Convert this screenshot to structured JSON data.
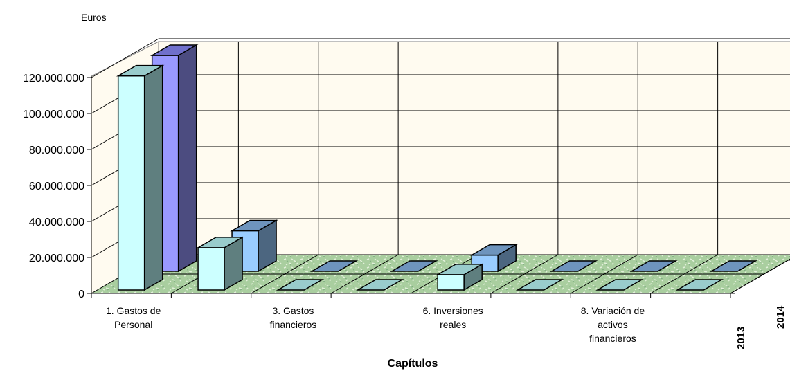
{
  "chart_data": {
    "type": "bar",
    "title": "",
    "ylabel": "Euros",
    "xlabel": "Capítulos",
    "ylim": [
      0,
      120000000
    ],
    "yticks": [
      "0",
      "20.000.000",
      "40.000.000",
      "60.000.000",
      "80.000.000",
      "100.000.000",
      "120.000.000"
    ],
    "categories": [
      "1. Gastos de Personal",
      "",
      "3. Gastos financieros",
      "",
      "6. Inversiones reales",
      "",
      "8. Variación de activos financieros",
      ""
    ],
    "category_label_lines": [
      [
        "1. Gastos de",
        "Personal"
      ],
      [],
      [
        "3. Gastos",
        "financieros"
      ],
      [],
      [
        "6. Inversiones",
        "reales"
      ],
      [],
      [
        "8. Variación de",
        "activos",
        "financieros"
      ],
      []
    ],
    "series": [
      {
        "name": "2013",
        "values": [
          119000000,
          23500000,
          0,
          0,
          8500000,
          0,
          0,
          0
        ]
      },
      {
        "name": "2014",
        "values": [
          120000000,
          22500000,
          0,
          0,
          9000000,
          0,
          0,
          0
        ]
      }
    ],
    "colors": {
      "s2013_front": "#ccffff",
      "s2013_side": "#5f7f7f",
      "s2013_top": "#99cccc",
      "s2014_front_big": "#9999ff",
      "s2014_side_big": "#4c4c80",
      "s2014_top_big": "#7070cc",
      "s2014_front": "#99ccff",
      "s2014_side": "#4c6680",
      "s2014_top": "#6e94bd",
      "wall": "#fffbf0",
      "floor": "#a9ce9f",
      "floor_dark": "#7fae80"
    },
    "grid": true,
    "legend": "depth-axis"
  }
}
